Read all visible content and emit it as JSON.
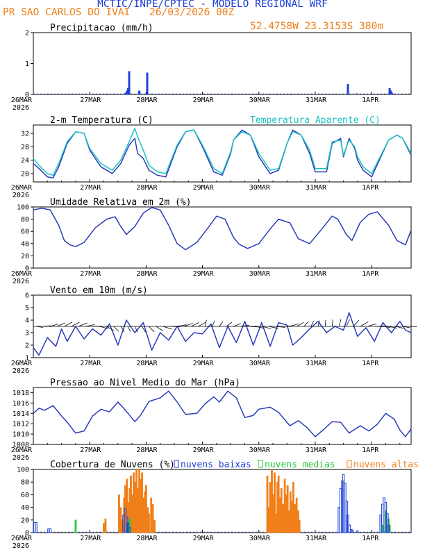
{
  "header": {
    "title": "MCTIC/INPE/CPTEC - MODELO REGIONAL WRF",
    "location": "PR SAO CARLOS DO IVAI",
    "run": "26/03/2026 00Z",
    "coords": "52.4758W  23.3153S  380m",
    "colors": {
      "title": "#1c3fd6",
      "location": "#f07f1a",
      "coords": "#f07f1a"
    }
  },
  "x_axis": {
    "ticks": [
      "26MAR",
      "27MAR",
      "28MAR",
      "29MAR",
      "30MAR",
      "31MAR",
      "1APR"
    ],
    "year": "2026",
    "range_days": [
      0,
      6.7
    ]
  },
  "chart_data": [
    {
      "type": "bar",
      "title": "Precipitacao (mm/h)",
      "ylim": [
        0,
        2
      ],
      "yticks": [
        "0",
        "1",
        "2"
      ],
      "series": [
        {
          "name": "precip",
          "color": "#1c3fd6",
          "x": [
            1.62,
            1.64,
            1.66,
            1.68,
            1.7,
            1.86,
            1.88,
            2.02,
            5.58,
            5.74,
            6.32,
            6.34,
            6.36,
            6.38
          ],
          "values": [
            0.03,
            0.05,
            0.12,
            0.2,
            0.75,
            0.02,
            0.12,
            0.7,
            0.33,
            0.03,
            0.2,
            0.12,
            0.05,
            0.02
          ]
        }
      ]
    },
    {
      "type": "line",
      "title": "2-m Temperatura (C)",
      "subtitle": "Temperatura Aparente (C)",
      "ylim": [
        17.5,
        34.5
      ],
      "yticks": [
        "20",
        "24",
        "28",
        "32"
      ],
      "series": [
        {
          "name": "Temperatura",
          "color": "#2a3bb8",
          "x": [
            0,
            0.1,
            0.25,
            0.35,
            0.45,
            0.6,
            0.75,
            0.9,
            1.0,
            1.2,
            1.4,
            1.55,
            1.7,
            1.8,
            1.85,
            1.95,
            2.05,
            2.2,
            2.35,
            2.55,
            2.7,
            2.85,
            3.0,
            3.2,
            3.35,
            3.5,
            3.55,
            3.7,
            3.85,
            4.0,
            4.2,
            4.35,
            4.5,
            4.6,
            4.75,
            4.9,
            5.0,
            5.2,
            5.3,
            5.45,
            5.5,
            5.6,
            5.7,
            5.75,
            5.85,
            6.0,
            6.15,
            6.3,
            6.45,
            6.55,
            6.7
          ],
          "values": [
            23,
            21.5,
            19,
            18.7,
            22,
            29,
            32.5,
            32,
            27,
            22,
            20,
            23,
            28.5,
            30.5,
            26,
            24.5,
            21,
            19.5,
            19,
            28,
            32.5,
            33,
            28,
            20.5,
            19.5,
            26,
            30,
            33,
            31.5,
            25,
            20,
            21,
            29,
            33,
            31.5,
            26,
            20.5,
            20.5,
            29,
            30.5,
            25,
            30.5,
            27.5,
            24,
            21,
            19,
            24.5,
            30,
            31.5,
            30.5,
            25.5
          ]
        },
        {
          "name": "Temperatura Aparente",
          "color": "#19c2c2",
          "x": [
            0,
            0.1,
            0.25,
            0.35,
            0.45,
            0.6,
            0.75,
            0.9,
            1.0,
            1.2,
            1.4,
            1.55,
            1.7,
            1.8,
            1.85,
            1.95,
            2.05,
            2.2,
            2.35,
            2.55,
            2.7,
            2.85,
            3.0,
            3.2,
            3.35,
            3.5,
            3.55,
            3.7,
            3.85,
            4.0,
            4.2,
            4.35,
            4.5,
            4.6,
            4.75,
            4.9,
            5.0,
            5.2,
            5.3,
            5.45,
            5.5,
            5.6,
            5.7,
            5.75,
            5.85,
            6.0,
            6.15,
            6.3,
            6.45,
            6.55,
            6.7
          ],
          "values": [
            24.5,
            22.5,
            20,
            19.5,
            23,
            29.5,
            32.5,
            32,
            27.5,
            23,
            21,
            24,
            29.5,
            33.5,
            31,
            27,
            22.5,
            20.5,
            20,
            28.5,
            32.5,
            33,
            28.5,
            21.5,
            20,
            26.5,
            30,
            32.5,
            31.5,
            26,
            21,
            21.5,
            29,
            32.5,
            31.5,
            27,
            21.5,
            21.5,
            29.5,
            30,
            25.5,
            30,
            28,
            25,
            22,
            20,
            25,
            30,
            31.5,
            30.5,
            26
          ]
        }
      ]
    },
    {
      "type": "line",
      "title": "Umidade Relativa em 2m (%)",
      "ylim": [
        0,
        100
      ],
      "yticks": [
        "0",
        "20",
        "40",
        "60",
        "80",
        "100"
      ],
      "series": [
        {
          "name": "UR",
          "color": "#2a3bb8",
          "x": [
            0,
            0.15,
            0.3,
            0.45,
            0.55,
            0.65,
            0.75,
            0.9,
            1.1,
            1.3,
            1.45,
            1.55,
            1.65,
            1.8,
            1.95,
            2.1,
            2.25,
            2.4,
            2.55,
            2.7,
            2.9,
            3.1,
            3.25,
            3.4,
            3.55,
            3.65,
            3.8,
            4.0,
            4.2,
            4.35,
            4.55,
            4.7,
            4.9,
            5.1,
            5.3,
            5.4,
            5.55,
            5.65,
            5.8,
            5.95,
            6.1,
            6.3,
            6.45,
            6.6,
            6.7
          ],
          "values": [
            95,
            98,
            95,
            70,
            45,
            38,
            35,
            42,
            66,
            80,
            84,
            68,
            55,
            68,
            90,
            99,
            95,
            70,
            40,
            30,
            42,
            66,
            85,
            80,
            50,
            39,
            32,
            40,
            64,
            80,
            74,
            48,
            40,
            62,
            85,
            80,
            55,
            45,
            75,
            88,
            92,
            70,
            45,
            38,
            62
          ]
        }
      ]
    },
    {
      "type": "line",
      "title": "Vento em 10m (m/s)",
      "ylim": [
        1,
        6
      ],
      "yticks": [
        "1",
        "2",
        "3",
        "4",
        "5",
        "6"
      ],
      "arrow_barbs": true,
      "series": [
        {
          "name": "vento",
          "color": "#2a3bb8",
          "x": [
            0,
            0.1,
            0.25,
            0.4,
            0.5,
            0.6,
            0.75,
            0.9,
            1.05,
            1.2,
            1.35,
            1.5,
            1.65,
            1.8,
            1.95,
            2.1,
            2.25,
            2.4,
            2.55,
            2.7,
            2.85,
            3.0,
            3.15,
            3.3,
            3.45,
            3.6,
            3.75,
            3.9,
            4.05,
            4.2,
            4.35,
            4.5,
            4.6,
            4.75,
            4.9,
            5.05,
            5.2,
            5.35,
            5.5,
            5.6,
            5.75,
            5.9,
            6.05,
            6.2,
            6.35,
            6.5,
            6.6,
            6.7
          ],
          "values": [
            1.8,
            1.2,
            2.6,
            1.9,
            3.3,
            2.3,
            3.5,
            2.5,
            3.3,
            2.8,
            3.7,
            2.0,
            4.0,
            3.0,
            3.8,
            1.6,
            3.0,
            2.4,
            3.5,
            2.3,
            3.0,
            2.9,
            3.7,
            1.8,
            3.5,
            2.2,
            3.9,
            2.0,
            3.8,
            1.9,
            3.8,
            3.6,
            2.0,
            2.6,
            3.3,
            3.9,
            3.0,
            3.5,
            3.2,
            4.6,
            2.7,
            3.4,
            2.3,
            3.8,
            3.0,
            3.9,
            3.2,
            3.0
          ]
        }
      ]
    },
    {
      "type": "line",
      "title": "Pressao ao Nivel Medio do Mar (hPa)",
      "ylim": [
        1008,
        1019
      ],
      "yticks": [
        "1008",
        "1010",
        "1012",
        "1014",
        "1016",
        "1018"
      ],
      "series": [
        {
          "name": "pressao",
          "color": "#2a3bb8",
          "x": [
            0,
            0.1,
            0.2,
            0.35,
            0.5,
            0.6,
            0.75,
            0.9,
            1.05,
            1.2,
            1.35,
            1.5,
            1.65,
            1.8,
            1.9,
            2.05,
            2.25,
            2.4,
            2.55,
            2.7,
            2.9,
            3.05,
            3.2,
            3.3,
            3.45,
            3.6,
            3.75,
            3.9,
            4.0,
            4.2,
            4.35,
            4.55,
            4.7,
            4.85,
            5.0,
            5.15,
            5.3,
            5.45,
            5.6,
            5.8,
            5.95,
            6.1,
            6.25,
            6.4,
            6.5,
            6.6,
            6.7
          ],
          "values": [
            1014,
            1015,
            1014.6,
            1015.5,
            1013.5,
            1012.3,
            1010.2,
            1010.6,
            1013.5,
            1014.8,
            1014.3,
            1016.2,
            1014.4,
            1012.4,
            1013.6,
            1016.3,
            1017,
            1018.3,
            1016.2,
            1013.8,
            1014,
            1015.9,
            1017.2,
            1016.2,
            1018.3,
            1017,
            1013.2,
            1013.6,
            1014.8,
            1015.2,
            1014.2,
            1011.6,
            1012.6,
            1011.3,
            1009.5,
            1010.9,
            1012.4,
            1012.3,
            1010.2,
            1011.6,
            1010.6,
            1011.9,
            1014,
            1012.9,
            1010.8,
            1009.5,
            1011
          ]
        }
      ]
    },
    {
      "type": "bar",
      "title": "Cobertura de Nuvens (%)",
      "ylim": [
        0,
        100
      ],
      "yticks": [
        "0",
        "20",
        "40",
        "60",
        "80",
        "100"
      ],
      "legend": [
        "nuvens baixas",
        "nuvens medias",
        "nuvens altas"
      ],
      "series": [
        {
          "name": "nuvens altas",
          "color": "#f07f1a",
          "x": [
            1.25,
            1.28,
            1.52,
            1.55,
            1.58,
            1.61,
            1.63,
            1.66,
            1.68,
            1.71,
            1.73,
            1.76,
            1.78,
            1.81,
            1.83,
            1.86,
            1.88,
            1.9,
            1.93,
            1.95,
            1.98,
            2.0,
            2.03,
            2.05,
            2.09,
            2.12,
            2.15,
            4.15,
            4.18,
            4.2,
            4.23,
            4.25,
            4.28,
            4.3,
            4.33,
            4.35,
            4.38,
            4.4,
            4.43,
            4.46,
            4.48,
            4.51,
            4.53,
            4.56,
            4.59,
            4.61,
            4.64,
            4.67,
            4.7,
            4.72
          ],
          "values": [
            15,
            22,
            60,
            40,
            20,
            55,
            75,
            85,
            48,
            70,
            90,
            60,
            95,
            80,
            100,
            70,
            100,
            85,
            95,
            55,
            65,
            75,
            40,
            30,
            55,
            45,
            20,
            90,
            40,
            80,
            100,
            60,
            95,
            30,
            80,
            90,
            55,
            70,
            45,
            85,
            60,
            75,
            35,
            65,
            50,
            80,
            45,
            55,
            35,
            20
          ]
        },
        {
          "name": "nuvens medias",
          "color": "#28c83a",
          "x": [
            0.75,
            1.66,
            1.68,
            1.71,
            6.2,
            6.25,
            6.3,
            6.32
          ],
          "values": [
            20,
            10,
            18,
            22,
            12,
            35,
            22,
            12
          ]
        },
        {
          "name": "nuvens baixas",
          "color": "#1c3fd6",
          "x": [
            0.02,
            0.05,
            0.27,
            0.3,
            1.6,
            1.63,
            1.66,
            1.68,
            1.71,
            5.42,
            5.45,
            5.48,
            5.5,
            5.53,
            5.56,
            5.58,
            5.61,
            5.64,
            5.66,
            5.75,
            6.16,
            6.19,
            6.22,
            6.25,
            6.28,
            6.3
          ],
          "values": [
            16,
            16,
            6,
            6,
            28,
            38,
            25,
            15,
            8,
            40,
            70,
            82,
            92,
            78,
            50,
            28,
            12,
            5,
            3,
            3,
            28,
            45,
            55,
            48,
            30,
            12
          ]
        }
      ]
    }
  ]
}
